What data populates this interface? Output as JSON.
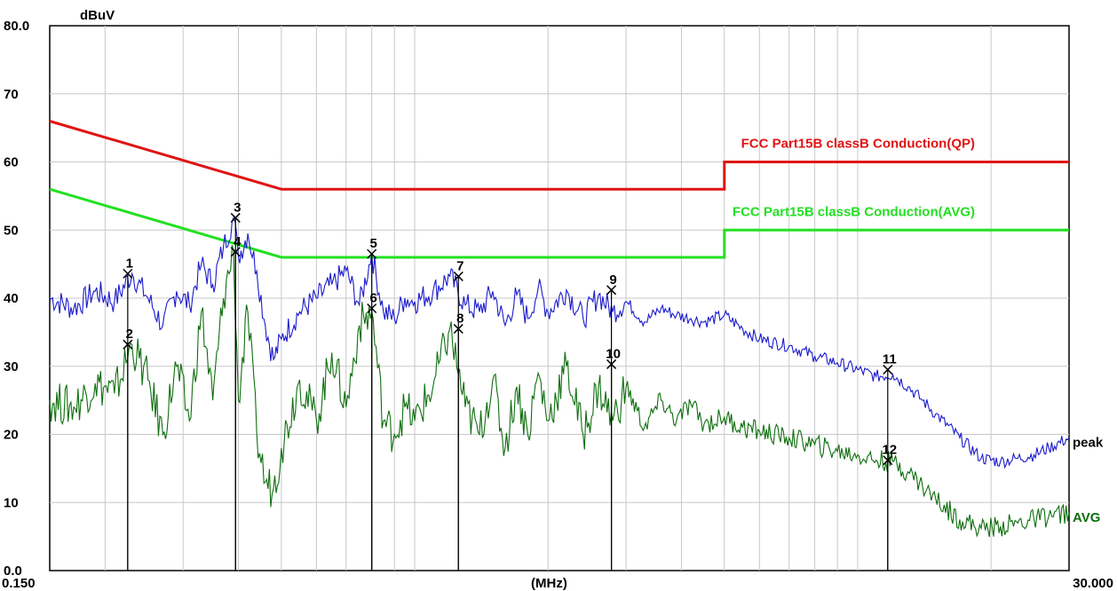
{
  "chart_data": {
    "type": "line",
    "xscale": "log",
    "xlim": [
      0.15,
      30.0
    ],
    "ylim": [
      0,
      80
    ],
    "grid": true,
    "ylabel": "dBuV",
    "xlabel": "(MHz)",
    "y_tick_labels": [
      {
        "value": 0,
        "label": "0.0"
      },
      {
        "value": 10,
        "label": "10"
      },
      {
        "value": 20,
        "label": "20"
      },
      {
        "value": 30,
        "label": "30"
      },
      {
        "value": 40,
        "label": "40"
      },
      {
        "value": 50,
        "label": "50"
      },
      {
        "value": 60,
        "label": "60"
      },
      {
        "value": 70,
        "label": "70"
      },
      {
        "value": 80,
        "label": "80.0"
      }
    ],
    "x_tick_labels": [
      {
        "value": 0.15,
        "label": "0.150"
      },
      {
        "value": 30.0,
        "label": "30.000"
      }
    ],
    "limit_lines": [
      {
        "name": "FCC  Part15B classB Conduction(QP)",
        "color": "#e01414",
        "points": [
          [
            0.15,
            66
          ],
          [
            0.5,
            56
          ],
          [
            5.0,
            56
          ],
          [
            5.0,
            60
          ],
          [
            30.0,
            60
          ]
        ]
      },
      {
        "name": "FCC  Part15B classB Conduction(AVG)",
        "color": "#22e022",
        "points": [
          [
            0.15,
            56
          ],
          [
            0.5,
            46
          ],
          [
            5.0,
            46
          ],
          [
            5.0,
            50
          ],
          [
            30.0,
            50
          ]
        ]
      }
    ],
    "series": [
      {
        "name": "peak",
        "color": "#1a1acc",
        "x": [
          0.15,
          0.17,
          0.19,
          0.21,
          0.23,
          0.25,
          0.27,
          0.29,
          0.31,
          0.33,
          0.35,
          0.37,
          0.39,
          0.4,
          0.42,
          0.44,
          0.46,
          0.48,
          0.5,
          0.55,
          0.6,
          0.65,
          0.7,
          0.75,
          0.8,
          0.85,
          0.9,
          0.95,
          1.0,
          1.1,
          1.2,
          1.3,
          1.4,
          1.5,
          1.6,
          1.7,
          1.8,
          1.9,
          2.0,
          2.2,
          2.4,
          2.6,
          2.8,
          3.0,
          3.3,
          3.6,
          3.9,
          4.2,
          4.5,
          5.0,
          5.5,
          6.0,
          7.0,
          8.0,
          9.0,
          10.0,
          11.0,
          12.0,
          13.0,
          14.0,
          15.0,
          17.0,
          19.0,
          21.0,
          23.0,
          25.0,
          27.0,
          30.0
        ],
        "values": [
          40.0,
          38.5,
          41.0,
          39.5,
          43.6,
          40.0,
          36.0,
          41.0,
          39.0,
          45.0,
          42.0,
          47.5,
          51.8,
          46.0,
          49.5,
          44.0,
          36.0,
          31.0,
          34.0,
          38.0,
          40.0,
          42.0,
          44.0,
          39.0,
          46.5,
          38.0,
          37.0,
          40.0,
          39.5,
          41.0,
          43.2,
          39.0,
          38.0,
          41.0,
          36.0,
          40.5,
          37.0,
          41.5,
          38.0,
          41.2,
          37.0,
          40.5,
          38.0,
          39.5,
          36.5,
          38.5,
          37.5,
          37.0,
          36.5,
          37.5,
          35.5,
          34.0,
          33.0,
          31.5,
          30.5,
          29.5,
          28.5,
          28.8,
          27.0,
          25.0,
          23.0,
          19.5,
          16.5,
          16.0,
          16.5,
          17.0,
          18.0,
          19.5
        ]
      },
      {
        "name": "AVG",
        "color": "#0e6e0e",
        "x": [
          0.15,
          0.17,
          0.19,
          0.21,
          0.23,
          0.25,
          0.27,
          0.29,
          0.31,
          0.33,
          0.35,
          0.37,
          0.39,
          0.4,
          0.42,
          0.44,
          0.46,
          0.48,
          0.5,
          0.55,
          0.6,
          0.65,
          0.7,
          0.75,
          0.8,
          0.85,
          0.9,
          0.95,
          1.0,
          1.1,
          1.2,
          1.3,
          1.4,
          1.5,
          1.6,
          1.7,
          1.8,
          1.9,
          2.0,
          2.2,
          2.4,
          2.6,
          2.8,
          3.0,
          3.3,
          3.6,
          3.9,
          4.2,
          4.5,
          5.0,
          5.5,
          6.0,
          7.0,
          8.0,
          9.0,
          10.0,
          11.0,
          12.0,
          13.0,
          14.0,
          15.0,
          17.0,
          19.0,
          21.0,
          23.0,
          25.0,
          27.0,
          30.0
        ],
        "values": [
          25.0,
          24.0,
          27.5,
          26.0,
          33.2,
          28.0,
          20.0,
          30.0,
          22.0,
          38.0,
          25.0,
          40.0,
          47.0,
          25.0,
          38.0,
          20.0,
          13.0,
          12.0,
          18.0,
          28.0,
          22.0,
          32.0,
          24.0,
          36.0,
          38.0,
          22.0,
          20.0,
          24.0,
          22.0,
          27.0,
          35.5,
          24.0,
          20.0,
          28.0,
          18.0,
          27.0,
          20.0,
          29.0,
          22.0,
          30.0,
          20.0,
          27.0,
          22.0,
          27.0,
          21.0,
          25.0,
          22.0,
          24.5,
          21.5,
          22.5,
          21.0,
          20.5,
          19.5,
          18.5,
          17.5,
          17.0,
          16.2,
          16.0,
          14.5,
          12.5,
          10.5,
          7.5,
          6.2,
          6.5,
          7.0,
          7.5,
          8.0,
          8.5
        ]
      }
    ],
    "markers": [
      {
        "label": "1",
        "x": 0.225,
        "y": 43.6
      },
      {
        "label": "2",
        "x": 0.225,
        "y": 33.2
      },
      {
        "label": "3",
        "x": 0.394,
        "y": 51.8
      },
      {
        "label": "4",
        "x": 0.394,
        "y": 46.8
      },
      {
        "label": "5",
        "x": 0.8,
        "y": 46.5
      },
      {
        "label": "6",
        "x": 0.8,
        "y": 38.5
      },
      {
        "label": "7",
        "x": 1.255,
        "y": 43.2
      },
      {
        "label": "8",
        "x": 1.255,
        "y": 35.5
      },
      {
        "label": "9",
        "x": 2.78,
        "y": 41.2
      },
      {
        "label": "10",
        "x": 2.78,
        "y": 30.3
      },
      {
        "label": "11",
        "x": 11.69,
        "y": 29.5
      },
      {
        "label": "12",
        "x": 11.69,
        "y": 16.2
      }
    ]
  }
}
